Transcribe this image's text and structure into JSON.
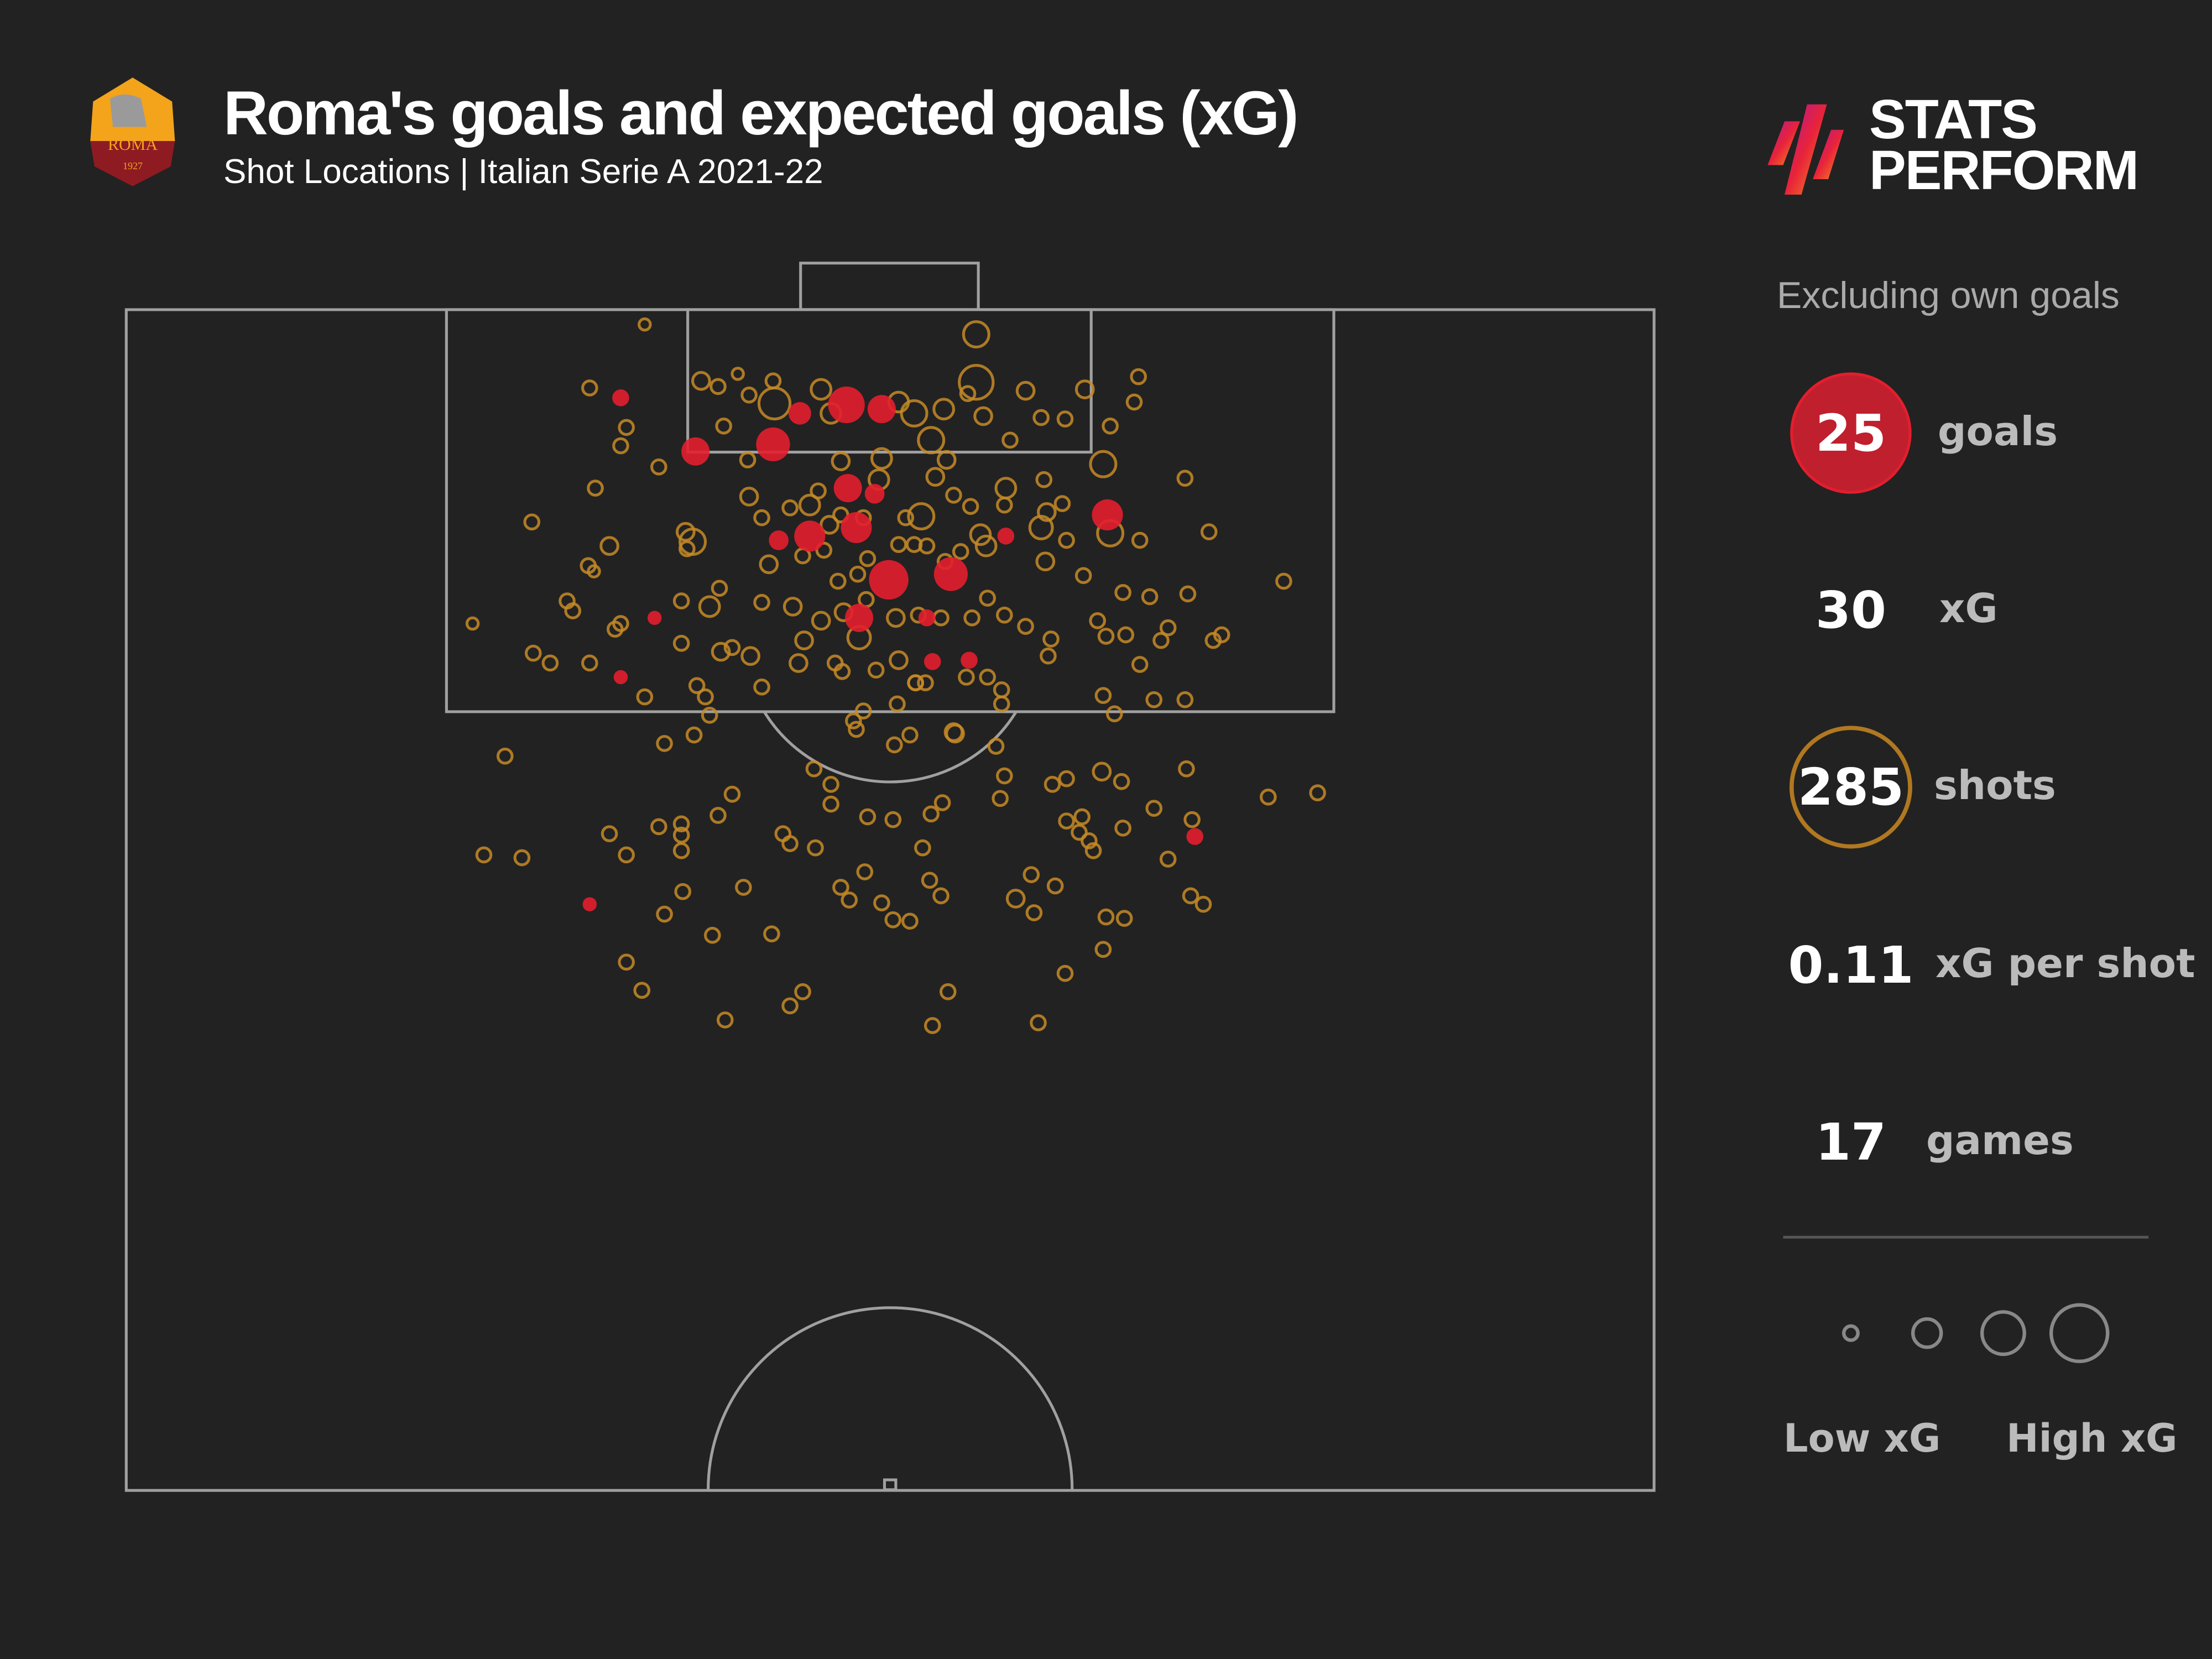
{
  "header": {
    "title": "Roma's goals and expected goals (xG)",
    "subtitle": "Shot Locations | Italian Serie A 2021-22",
    "crest_text": "ROMA",
    "crest_year": "1927",
    "brand_line1": "STATS",
    "brand_line2": "PERFORM"
  },
  "sidebar": {
    "note": "Excluding own goals",
    "stats": [
      {
        "value": "25",
        "label": "goals"
      },
      {
        "value": "30",
        "label": "xG"
      },
      {
        "value": "285",
        "label": "shots"
      },
      {
        "value": "0.11",
        "label": "xG per shot"
      },
      {
        "value": "17",
        "label": "games"
      }
    ],
    "legend_low": "Low xG",
    "legend_high": "High xG"
  },
  "colors": {
    "background": "#222222",
    "goal": "#e31e2d",
    "shot": "#c58a26",
    "pitch_line": "#a0a0a0",
    "legend": "#888888"
  },
  "chart_data": {
    "type": "scatter",
    "title": "Roma's goals and expected goals (xG)",
    "subtitle": "Shot Locations | Italian Serie A 2021-22",
    "totals": {
      "goals": 25,
      "xG": 30,
      "shots": 285,
      "xG_per_shot": 0.11,
      "games": 17
    },
    "encoding": {
      "size": "xG",
      "color": {
        "goal": "red filled",
        "no_goal": "gold outline"
      }
    },
    "legend": [
      "Low xG",
      "High xG"
    ],
    "coordinate_space": "preview px (1568x1176)",
    "goals": [
      [
        440,
        282,
        6
      ],
      [
        493,
        320,
        10
      ],
      [
        548,
        315,
        12
      ],
      [
        567,
        293,
        8
      ],
      [
        600,
        287,
        13
      ],
      [
        625,
        290,
        10
      ],
      [
        601,
        346,
        10
      ],
      [
        620,
        350,
        7
      ],
      [
        574,
        380,
        11
      ],
      [
        607,
        374,
        11
      ],
      [
        552,
        383,
        7
      ],
      [
        630,
        411,
        14
      ],
      [
        674,
        407,
        12
      ],
      [
        609,
        438,
        10
      ],
      [
        657,
        438,
        6
      ],
      [
        661,
        469,
        6
      ],
      [
        687,
        468,
        6
      ],
      [
        713,
        380,
        6
      ],
      [
        785,
        365,
        11
      ],
      [
        464,
        438,
        5
      ],
      [
        440,
        480,
        5
      ],
      [
        418,
        641,
        5
      ],
      [
        847,
        593,
        6
      ]
    ],
    "shots": [
      [
        457,
        230,
        4
      ],
      [
        692,
        237,
        9
      ],
      [
        418,
        275,
        5
      ],
      [
        497,
        270,
        6
      ],
      [
        509,
        274,
        5
      ],
      [
        523,
        265,
        4
      ],
      [
        531,
        280,
        5
      ],
      [
        548,
        270,
        5
      ],
      [
        582,
        276,
        7
      ],
      [
        549,
        286,
        11
      ],
      [
        589,
        293,
        7
      ],
      [
        637,
        285,
        7
      ],
      [
        648,
        293,
        9
      ],
      [
        669,
        290,
        7
      ],
      [
        692,
        271,
        12
      ],
      [
        727,
        277,
        6
      ],
      [
        738,
        296,
        5
      ],
      [
        755,
        297,
        5
      ],
      [
        769,
        276,
        6
      ],
      [
        807,
        267,
        5
      ],
      [
        804,
        285,
        5
      ],
      [
        444,
        303,
        5
      ],
      [
        440,
        316,
        5
      ],
      [
        467,
        331,
        5
      ],
      [
        513,
        302,
        5
      ],
      [
        530,
        326,
        5
      ],
      [
        596,
        327,
        6
      ],
      [
        625,
        325,
        7
      ],
      [
        660,
        312,
        9
      ],
      [
        671,
        326,
        6
      ],
      [
        697,
        295,
        6
      ],
      [
        716,
        312,
        5
      ],
      [
        686,
        279,
        5
      ],
      [
        782,
        329,
        9
      ],
      [
        787,
        302,
        5
      ],
      [
        422,
        346,
        5
      ],
      [
        486,
        377,
        6
      ],
      [
        491,
        384,
        9
      ],
      [
        531,
        352,
        6
      ],
      [
        540,
        367,
        5
      ],
      [
        560,
        360,
        5
      ],
      [
        574,
        358,
        7
      ],
      [
        580,
        348,
        5
      ],
      [
        588,
        372,
        6
      ],
      [
        596,
        365,
        5
      ],
      [
        612,
        367,
        5
      ],
      [
        623,
        340,
        7
      ],
      [
        642,
        367,
        5
      ],
      [
        653,
        366,
        9
      ],
      [
        663,
        338,
        6
      ],
      [
        676,
        351,
        5
      ],
      [
        688,
        359,
        5
      ],
      [
        713,
        346,
        7
      ],
      [
        712,
        358,
        5
      ],
      [
        695,
        379,
        7
      ],
      [
        740,
        340,
        5
      ],
      [
        742,
        363,
        6
      ],
      [
        738,
        374,
        8
      ],
      [
        753,
        357,
        5
      ],
      [
        756,
        383,
        5
      ],
      [
        787,
        378,
        9
      ],
      [
        808,
        383,
        5
      ],
      [
        840,
        339,
        5
      ],
      [
        857,
        377,
        5
      ],
      [
        910,
        412,
        5
      ],
      [
        377,
        370,
        5
      ],
      [
        432,
        387,
        6
      ],
      [
        417,
        401,
        5
      ],
      [
        421,
        405,
        4
      ],
      [
        487,
        389,
        5
      ],
      [
        545,
        400,
        6
      ],
      [
        569,
        394,
        5
      ],
      [
        584,
        390,
        5
      ],
      [
        594,
        412,
        5
      ],
      [
        608,
        407,
        5
      ],
      [
        615,
        396,
        5
      ],
      [
        637,
        386,
        5
      ],
      [
        648,
        386,
        5
      ],
      [
        657,
        387,
        5
      ],
      [
        670,
        398,
        5
      ],
      [
        681,
        391,
        5
      ],
      [
        699,
        387,
        7
      ],
      [
        741,
        398,
        6
      ],
      [
        768,
        408,
        5
      ],
      [
        796,
        420,
        5
      ],
      [
        815,
        423,
        5
      ],
      [
        842,
        421,
        5
      ],
      [
        335,
        442,
        4
      ],
      [
        402,
        426,
        5
      ],
      [
        406,
        433,
        5
      ],
      [
        440,
        442,
        5
      ],
      [
        436,
        446,
        5
      ],
      [
        483,
        426,
        5
      ],
      [
        503,
        430,
        7
      ],
      [
        510,
        417,
        5
      ],
      [
        540,
        427,
        5
      ],
      [
        562,
        430,
        6
      ],
      [
        582,
        440,
        6
      ],
      [
        598,
        434,
        6
      ],
      [
        609,
        452,
        8
      ],
      [
        614,
        425,
        5
      ],
      [
        635,
        438,
        6
      ],
      [
        651,
        436,
        5
      ],
      [
        667,
        438,
        5
      ],
      [
        689,
        438,
        5
      ],
      [
        700,
        424,
        5
      ],
      [
        712,
        436,
        5
      ],
      [
        727,
        444,
        5
      ],
      [
        745,
        453,
        5
      ],
      [
        778,
        440,
        5
      ],
      [
        784,
        451,
        5
      ],
      [
        798,
        450,
        5
      ],
      [
        828,
        445,
        5
      ],
      [
        860,
        454,
        5
      ],
      [
        866,
        450,
        5
      ],
      [
        378,
        463,
        5
      ],
      [
        390,
        470,
        5
      ],
      [
        418,
        470,
        5
      ],
      [
        483,
        456,
        5
      ],
      [
        511,
        462,
        6
      ],
      [
        519,
        459,
        5
      ],
      [
        532,
        465,
        6
      ],
      [
        570,
        454,
        6
      ],
      [
        566,
        470,
        6
      ],
      [
        592,
        470,
        5
      ],
      [
        597,
        476,
        5
      ],
      [
        621,
        475,
        5
      ],
      [
        637,
        468,
        6
      ],
      [
        649,
        484,
        5
      ],
      [
        656,
        484,
        5
      ],
      [
        685,
        480,
        5
      ],
      [
        700,
        480,
        5
      ],
      [
        710,
        489,
        5
      ],
      [
        743,
        465,
        5
      ],
      [
        782,
        493,
        5
      ],
      [
        808,
        471,
        5
      ],
      [
        823,
        454,
        5
      ],
      [
        457,
        494,
        5
      ],
      [
        494,
        486,
        5
      ],
      [
        500,
        494,
        5
      ],
      [
        503,
        507,
        5
      ],
      [
        540,
        487,
        5
      ],
      [
        605,
        511,
        5
      ],
      [
        612,
        504,
        5
      ],
      [
        636,
        499,
        5
      ],
      [
        649,
        484,
        5
      ],
      [
        676,
        519,
        6
      ],
      [
        710,
        499,
        5
      ],
      [
        790,
        506,
        5
      ],
      [
        818,
        496,
        5
      ],
      [
        840,
        496,
        5
      ],
      [
        358,
        536,
        5
      ],
      [
        471,
        527,
        5
      ],
      [
        492,
        521,
        5
      ],
      [
        519,
        563,
        5
      ],
      [
        577,
        545,
        5
      ],
      [
        589,
        556,
        5
      ],
      [
        607,
        517,
        5
      ],
      [
        634,
        528,
        5
      ],
      [
        645,
        521,
        5
      ],
      [
        677,
        520,
        6
      ],
      [
        706,
        529,
        5
      ],
      [
        712,
        550,
        5
      ],
      [
        709,
        566,
        5
      ],
      [
        746,
        556,
        5
      ],
      [
        756,
        552,
        5
      ],
      [
        781,
        547,
        6
      ],
      [
        795,
        554,
        5
      ],
      [
        841,
        545,
        5
      ],
      [
        899,
        565,
        5
      ],
      [
        934,
        562,
        5
      ],
      [
        343,
        606,
        5
      ],
      [
        370,
        608,
        5
      ],
      [
        432,
        591,
        5
      ],
      [
        444,
        606,
        5
      ],
      [
        467,
        586,
        5
      ],
      [
        483,
        584,
        5
      ],
      [
        483,
        592,
        5
      ],
      [
        483,
        603,
        5
      ],
      [
        509,
        578,
        5
      ],
      [
        555,
        591,
        5
      ],
      [
        560,
        598,
        5
      ],
      [
        578,
        601,
        5
      ],
      [
        589,
        570,
        5
      ],
      [
        615,
        579,
        5
      ],
      [
        633,
        581,
        5
      ],
      [
        654,
        601,
        5
      ],
      [
        660,
        577,
        5
      ],
      [
        668,
        569,
        5
      ],
      [
        731,
        620,
        5
      ],
      [
        756,
        582,
        5
      ],
      [
        765,
        590,
        5
      ],
      [
        767,
        579,
        5
      ],
      [
        775,
        603,
        5
      ],
      [
        796,
        587,
        5
      ],
      [
        772,
        596,
        5
      ],
      [
        818,
        573,
        5
      ],
      [
        845,
        581,
        5
      ],
      [
        853,
        641,
        5
      ],
      [
        844,
        635,
        5
      ],
      [
        828,
        609,
        5
      ],
      [
        471,
        648,
        5
      ],
      [
        484,
        632,
        5
      ],
      [
        505,
        663,
        5
      ],
      [
        527,
        629,
        5
      ],
      [
        547,
        662,
        5
      ],
      [
        596,
        629,
        5
      ],
      [
        602,
        638,
        5
      ],
      [
        613,
        618,
        5
      ],
      [
        625,
        640,
        5
      ],
      [
        633,
        652,
        5
      ],
      [
        645,
        653,
        5
      ],
      [
        659,
        624,
        5
      ],
      [
        667,
        635,
        5
      ],
      [
        720,
        637,
        6
      ],
      [
        733,
        647,
        5
      ],
      [
        748,
        628,
        5
      ],
      [
        784,
        650,
        5
      ],
      [
        797,
        651,
        5
      ],
      [
        782,
        673,
        5
      ],
      [
        444,
        682,
        5
      ],
      [
        455,
        702,
        5
      ],
      [
        514,
        723,
        5
      ],
      [
        560,
        713,
        5
      ],
      [
        569,
        703,
        5
      ],
      [
        661,
        727,
        5
      ],
      [
        672,
        703,
        5
      ],
      [
        736,
        725,
        5
      ],
      [
        755,
        690,
        5
      ]
    ],
    "legend_sizes": [
      5,
      7,
      9,
      11
    ]
  }
}
